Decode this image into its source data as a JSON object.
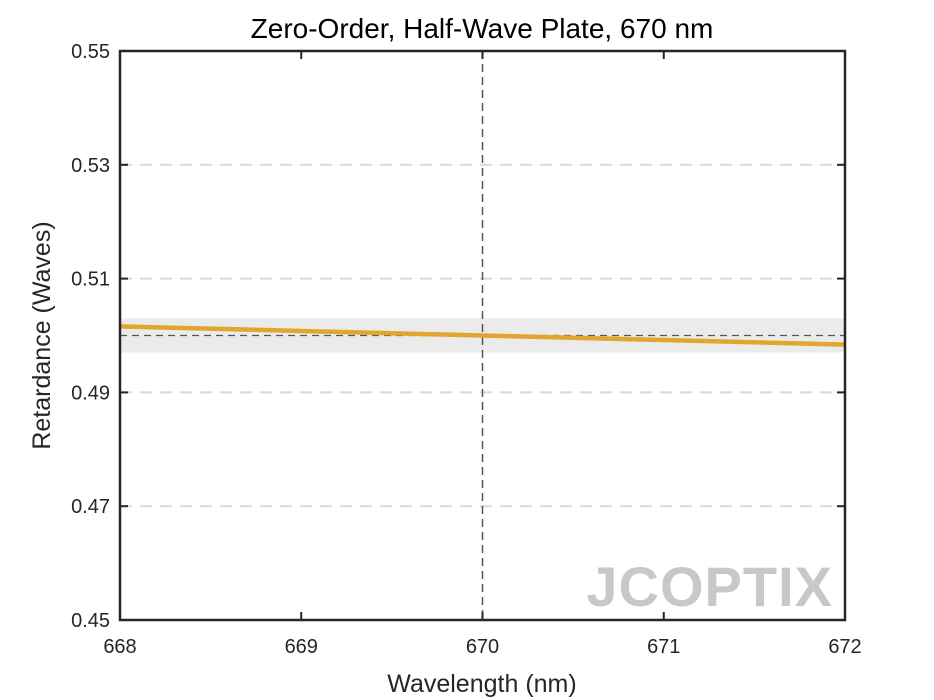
{
  "chart_data": {
    "type": "line",
    "title": "Zero-Order, Half-Wave Plate, 670 nm",
    "xlabel": "Wavelength (nm)",
    "ylabel": "Retardance (Waves)",
    "xlim": [
      668,
      672
    ],
    "ylim": [
      0.45,
      0.55
    ],
    "xticks": [
      668,
      669,
      670,
      671,
      672
    ],
    "xtick_labels": [
      "668",
      "669",
      "670",
      "671",
      "672"
    ],
    "yticks": [
      0.45,
      0.47,
      0.49,
      0.51,
      0.53,
      0.55
    ],
    "ytick_labels": [
      "0.45",
      "0.47",
      "0.49",
      "0.51",
      "0.53",
      "0.55"
    ],
    "grid": "horizontal-dashed",
    "design_wavelength": 670,
    "target_retardance": 0.5,
    "tolerance_band": [
      0.497,
      0.503
    ],
    "series": [
      {
        "x": [
          668,
          669,
          670,
          671,
          672
        ],
        "values": [
          0.5016,
          0.5008,
          0.5,
          0.4992,
          0.4984
        ],
        "color": "#E2A52E"
      }
    ],
    "colors": {
      "line": "#E2A52E",
      "band": "#ebebeb",
      "grid": "#d9d9d9",
      "reference": "#555555",
      "axes": "#262626"
    }
  },
  "logo": {
    "text": "JCOPTIX"
  }
}
